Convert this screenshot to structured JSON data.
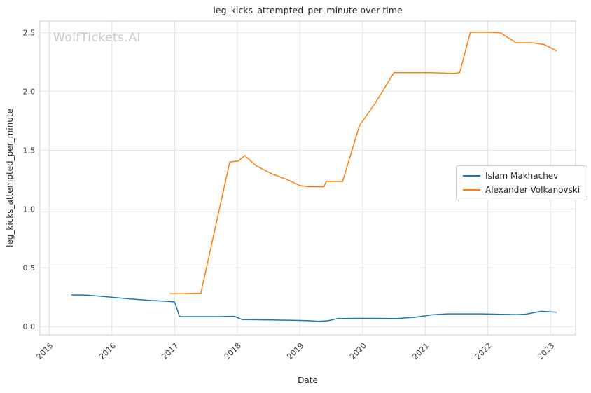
{
  "watermark": "WolfTickets.AI",
  "chart_data": {
    "type": "line",
    "title": "leg_kicks_attempted_per_minute over time",
    "xlabel": "Date",
    "ylabel": "leg_kicks_attempted_per_minute",
    "grid": true,
    "legend_position": "center right",
    "xlim": [
      2014.85,
      2023.4
    ],
    "ylim": [
      -0.07,
      2.6
    ],
    "xticks": [
      2015,
      2016,
      2017,
      2018,
      2019,
      2020,
      2021,
      2022,
      2023
    ],
    "yticks": [
      0.0,
      0.5,
      1.0,
      1.5,
      2.0,
      2.5
    ],
    "series": [
      {
        "name": "Islam Makhachev",
        "color": "#1f77b4",
        "points": [
          [
            2015.35,
            0.27
          ],
          [
            2015.6,
            0.268
          ],
          [
            2015.9,
            0.255
          ],
          [
            2016.2,
            0.24
          ],
          [
            2016.55,
            0.225
          ],
          [
            2016.9,
            0.215
          ],
          [
            2017.0,
            0.21
          ],
          [
            2017.08,
            0.085
          ],
          [
            2017.35,
            0.085
          ],
          [
            2017.7,
            0.085
          ],
          [
            2017.95,
            0.088
          ],
          [
            2018.08,
            0.06
          ],
          [
            2018.35,
            0.058
          ],
          [
            2018.7,
            0.055
          ],
          [
            2018.95,
            0.053
          ],
          [
            2019.15,
            0.05
          ],
          [
            2019.3,
            0.045
          ],
          [
            2019.45,
            0.05
          ],
          [
            2019.6,
            0.068
          ],
          [
            2019.9,
            0.07
          ],
          [
            2020.2,
            0.07
          ],
          [
            2020.55,
            0.068
          ],
          [
            2020.85,
            0.08
          ],
          [
            2021.1,
            0.1
          ],
          [
            2021.35,
            0.108
          ],
          [
            2021.6,
            0.108
          ],
          [
            2021.9,
            0.108
          ],
          [
            2022.15,
            0.105
          ],
          [
            2022.45,
            0.102
          ],
          [
            2022.6,
            0.105
          ],
          [
            2022.85,
            0.13
          ],
          [
            2023.1,
            0.122
          ]
        ]
      },
      {
        "name": "Alexander Volkanovski",
        "color": "#ff7f0e",
        "points": [
          [
            2016.92,
            0.28
          ],
          [
            2017.15,
            0.28
          ],
          [
            2017.42,
            0.285
          ],
          [
            2017.88,
            1.4
          ],
          [
            2018.02,
            1.41
          ],
          [
            2018.12,
            1.455
          ],
          [
            2018.3,
            1.37
          ],
          [
            2018.55,
            1.3
          ],
          [
            2018.8,
            1.25
          ],
          [
            2019.0,
            1.2
          ],
          [
            2019.15,
            1.19
          ],
          [
            2019.38,
            1.19
          ],
          [
            2019.42,
            1.235
          ],
          [
            2019.68,
            1.235
          ],
          [
            2019.95,
            1.71
          ],
          [
            2020.2,
            1.9
          ],
          [
            2020.5,
            2.16
          ],
          [
            2020.8,
            2.16
          ],
          [
            2021.1,
            2.16
          ],
          [
            2021.45,
            2.155
          ],
          [
            2021.55,
            2.16
          ],
          [
            2021.72,
            2.505
          ],
          [
            2022.0,
            2.505
          ],
          [
            2022.2,
            2.5
          ],
          [
            2022.45,
            2.415
          ],
          [
            2022.7,
            2.415
          ],
          [
            2022.9,
            2.4
          ],
          [
            2023.1,
            2.345
          ]
        ]
      }
    ]
  }
}
